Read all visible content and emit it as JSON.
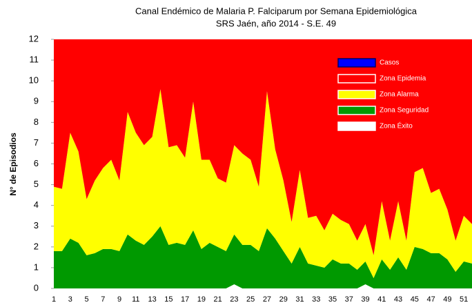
{
  "chart_data": {
    "type": "stacked_area",
    "title": "Canal Endémico de Malaria P. Falciparum por Semana Epidemiológica",
    "subtitle": "SRS Jaén, año 2014 - S.E. 49",
    "y_label": "N° de Episodios",
    "x": [
      1,
      2,
      3,
      4,
      5,
      6,
      7,
      8,
      9,
      10,
      11,
      12,
      13,
      14,
      15,
      16,
      17,
      18,
      19,
      20,
      21,
      22,
      23,
      24,
      25,
      26,
      27,
      28,
      29,
      30,
      31,
      32,
      33,
      34,
      35,
      36,
      37,
      38,
      39,
      40,
      41,
      42,
      43,
      44,
      45,
      46,
      47,
      48,
      49,
      50,
      51,
      52
    ],
    "xlim": [
      1,
      52
    ],
    "xticks": [
      1,
      3,
      5,
      7,
      9,
      11,
      13,
      15,
      17,
      19,
      21,
      23,
      25,
      27,
      29,
      31,
      33,
      35,
      37,
      39,
      41,
      43,
      45,
      47,
      49,
      51
    ],
    "ylim": [
      0,
      12
    ],
    "yticks": [
      0,
      1,
      2,
      3,
      4,
      5,
      6,
      7,
      8,
      9,
      10,
      11,
      12
    ],
    "legend": "upper right",
    "series": [
      {
        "name": "Zona Éxito",
        "color": "#ffffff",
        "values": [
          0,
          0,
          0,
          0,
          0,
          0,
          0,
          0,
          0,
          0,
          0,
          0,
          0,
          0,
          0,
          0,
          0,
          0,
          0,
          0,
          0,
          0,
          0.2,
          0,
          0,
          0,
          0,
          0,
          0,
          0,
          0,
          0,
          0,
          0,
          0,
          0,
          0,
          0,
          0.2,
          0,
          0,
          0,
          0,
          0,
          0,
          0,
          0,
          0,
          0,
          0,
          0,
          0
        ]
      },
      {
        "name": "Zona Seguridad",
        "color": "#009900",
        "values": [
          1.8,
          1.8,
          2.4,
          2.2,
          1.6,
          1.7,
          1.9,
          1.9,
          1.8,
          2.6,
          2.3,
          2.1,
          2.5,
          3.0,
          2.1,
          2.2,
          2.1,
          2.8,
          1.9,
          2.2,
          2.0,
          1.8,
          2.4,
          2.1,
          2.1,
          1.8,
          2.9,
          2.4,
          1.8,
          1.2,
          2.0,
          1.2,
          1.1,
          1.0,
          1.4,
          1.2,
          1.2,
          0.9,
          1.1,
          0.5,
          1.4,
          0.9,
          1.5,
          0.9,
          2.0,
          1.9,
          1.7,
          1.7,
          1.4,
          0.8,
          1.3,
          1.2
        ]
      },
      {
        "name": "Zona Alarma",
        "color": "#ffff00",
        "values": [
          3.1,
          3.0,
          5.1,
          4.4,
          2.7,
          3.5,
          3.9,
          4.3,
          3.4,
          5.9,
          5.2,
          4.8,
          4.8,
          6.6,
          4.7,
          4.7,
          4.2,
          6.2,
          4.3,
          4.0,
          3.3,
          3.3,
          4.3,
          4.4,
          4.1,
          3.1,
          6.6,
          4.3,
          3.4,
          2.0,
          3.7,
          2.2,
          2.4,
          1.8,
          2.2,
          2.1,
          1.9,
          1.4,
          1.8,
          1.1,
          2.8,
          1.4,
          2.7,
          1.4,
          3.6,
          3.9,
          2.9,
          3.1,
          2.4,
          1.5,
          2.2,
          1.9
        ]
      },
      {
        "name": "Zona Epidemia",
        "color": "#ff0000",
        "values": [
          7.1,
          7.2,
          4.5,
          5.4,
          7.7,
          6.8,
          6.2,
          5.8,
          6.8,
          3.5,
          4.5,
          5.1,
          4.7,
          2.4,
          5.2,
          5.1,
          5.7,
          3.0,
          5.8,
          5.8,
          6.7,
          6.9,
          5.1,
          5.5,
          5.8,
          7.1,
          2.5,
          5.3,
          6.8,
          8.8,
          6.3,
          8.6,
          8.5,
          9.2,
          8.4,
          8.7,
          8.9,
          9.7,
          8.9,
          10.4,
          7.8,
          9.7,
          7.8,
          9.7,
          6.4,
          6.2,
          7.4,
          7.2,
          8.2,
          9.7,
          8.5,
          8.9
        ]
      },
      {
        "name": "Casos",
        "color": "#0000ff",
        "values": [
          null,
          null,
          null,
          null,
          null,
          null,
          null,
          null,
          null,
          null,
          null,
          null,
          null,
          null,
          null,
          null,
          null,
          null,
          null,
          null,
          null,
          null,
          null,
          null,
          null,
          null,
          null,
          null,
          null,
          null,
          null,
          null,
          null,
          null,
          null,
          null,
          null,
          null,
          null,
          null,
          null,
          null,
          null,
          null,
          null,
          null,
          null,
          null,
          null,
          null,
          null,
          null
        ]
      }
    ]
  }
}
